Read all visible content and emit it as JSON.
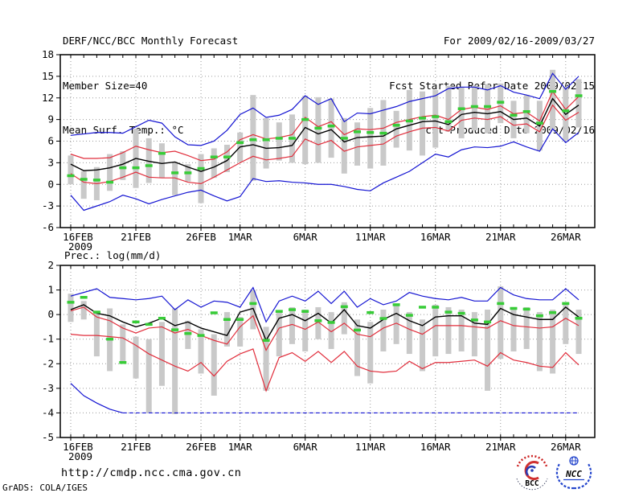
{
  "header": {
    "title": "DERF/NCC/BCC Monthly Forecast",
    "member_size": "Member Size=40",
    "for_range": "For 2009/02/16-2009/03/27",
    "fcst_started": "Fcst Started Refer Date 2009/02/15",
    "fcst_produced": "Fcst Produced Date 2009/02/16"
  },
  "footer": {
    "url": "http://cmdp.ncc.cma.gov.cn",
    "credit": "GrADS: COLA/IGES",
    "logo_bcc_label": "BCC",
    "logo_ncc_label": "NCC"
  },
  "colors": {
    "blue_line": "#1414d2",
    "red_line": "#e12e3c",
    "black_line": "#000000",
    "green_marker": "#37cc37",
    "bar_fill": "#c9c9c9",
    "grid": "#9a9a9a"
  },
  "chart_data": [
    {
      "type": "line",
      "title": "Mean Surf. Temp.: °C",
      "x_start_label": "16FEB2009",
      "x_end_label": "27MAR2009",
      "days_count": 40,
      "ylim": [
        -6,
        18
      ],
      "yticks": [
        18,
        15,
        12,
        9,
        6,
        3,
        0,
        -3,
        -6
      ],
      "grid_color": "#9a9a9a",
      "xticks": [
        {
          "day": 0,
          "label": "16FEB",
          "year": "2009"
        },
        {
          "day": 5,
          "label": "21FEB"
        },
        {
          "day": 10,
          "label": "26FEB"
        },
        {
          "day": 13,
          "label": "1MAR"
        },
        {
          "day": 18,
          "label": "6MAR"
        },
        {
          "day": 23,
          "label": "11MAR"
        },
        {
          "day": 28,
          "label": "16MAR"
        },
        {
          "day": 33,
          "label": "21MAR"
        },
        {
          "day": 38,
          "label": "26MAR"
        }
      ],
      "bars": {
        "name": "ensemble-spread-bars",
        "color": "#c9c9c9",
        "hi": [
          4.0,
          1.8,
          2.4,
          4.2,
          4.6,
          7.7,
          6.4,
          5.7,
          3.1,
          2.8,
          4.2,
          5.0,
          5.5,
          7.2,
          12.4,
          9.2,
          8.6,
          9.7,
          12.3,
          12.1,
          11.9,
          9.2,
          8.6,
          10.6,
          11.7,
          10.2,
          13.1,
          12.9,
          13.1,
          13.7,
          13.5,
          13.7,
          13.9,
          14.0,
          11.6,
          12.4,
          11.6,
          15.9,
          13.5,
          14.6
        ],
        "lo": [
          0.0,
          -2.0,
          -2.2,
          -0.9,
          0.6,
          -0.5,
          0.2,
          0.9,
          -1.5,
          0.4,
          -2.6,
          0.9,
          1.7,
          3.1,
          0.5,
          2.2,
          3.3,
          3.0,
          2.8,
          3.0,
          3.7,
          1.5,
          2.6,
          2.2,
          2.6,
          5.1,
          4.7,
          4.0,
          5.1,
          7.3,
          6.4,
          7.5,
          7.1,
          8.5,
          6.4,
          7.1,
          4.7,
          7.5,
          6.1,
          7.9
        ]
      },
      "series": [
        {
          "name": "blue-upper-line",
          "color": "#1414d2",
          "width": 1.2,
          "values": [
            6.8,
            7.0,
            7.2,
            7.2,
            7.1,
            8.0,
            8.9,
            8.5,
            6.6,
            5.5,
            5.4,
            6.0,
            7.5,
            9.7,
            10.6,
            9.3,
            9.6,
            10.4,
            12.3,
            11.1,
            11.9,
            8.7,
            9.9,
            9.8,
            10.3,
            10.8,
            11.5,
            11.9,
            12.3,
            13.3,
            13.5,
            13.5,
            13.1,
            13.7,
            12.8,
            12.4,
            11.9,
            15.4,
            13.2,
            15.0
          ]
        },
        {
          "name": "red-upper-line",
          "color": "#e12e3c",
          "width": 1.2,
          "values": [
            4.2,
            3.6,
            3.6,
            3.7,
            4.4,
            5.3,
            4.8,
            4.4,
            4.6,
            4.0,
            3.3,
            3.5,
            4.5,
            6.2,
            6.9,
            6.3,
            6.5,
            6.9,
            9.3,
            8.0,
            8.7,
            6.9,
            7.7,
            7.6,
            7.8,
            8.6,
            9.0,
            9.4,
            9.6,
            9.0,
            10.4,
            10.7,
            10.4,
            10.9,
            9.8,
            10.0,
            8.8,
            12.9,
            10.4,
            12.2
          ]
        },
        {
          "name": "black-mean-line",
          "color": "#000000",
          "width": 1.4,
          "values": [
            2.8,
            1.9,
            2.0,
            2.3,
            2.8,
            3.6,
            3.2,
            2.9,
            3.1,
            2.4,
            1.8,
            2.4,
            3.3,
            5.2,
            5.5,
            5.0,
            5.1,
            5.4,
            7.9,
            7.0,
            7.6,
            5.9,
            6.5,
            6.6,
            6.7,
            7.7,
            8.2,
            8.7,
            8.8,
            8.3,
            9.7,
            10.0,
            9.8,
            10.1,
            9.0,
            9.2,
            8.1,
            11.9,
            9.7,
            11.0
          ]
        },
        {
          "name": "red-lower-line",
          "color": "#e12e3c",
          "width": 1.2,
          "values": [
            1.5,
            0.3,
            0.1,
            0.4,
            1.0,
            1.7,
            1.0,
            0.9,
            0.9,
            0.3,
            0.1,
            1.0,
            2.0,
            3.0,
            3.9,
            3.4,
            3.6,
            3.9,
            6.3,
            5.5,
            6.1,
            4.6,
            5.2,
            5.4,
            5.6,
            6.7,
            7.3,
            7.8,
            7.9,
            7.4,
            8.9,
            9.2,
            9.0,
            9.4,
            8.2,
            8.4,
            7.3,
            11.0,
            8.9,
            10.0
          ]
        },
        {
          "name": "blue-lower-line",
          "color": "#1414d2",
          "width": 1.2,
          "values": [
            -1.5,
            -3.6,
            -3.0,
            -2.4,
            -1.5,
            -2.0,
            -2.7,
            -2.1,
            -1.6,
            -1.1,
            -0.8,
            -1.6,
            -2.3,
            -1.7,
            0.8,
            0.4,
            0.5,
            0.3,
            0.2,
            0.0,
            0.0,
            -0.3,
            -0.7,
            -0.9,
            0.2,
            1.0,
            1.8,
            3.0,
            4.2,
            3.8,
            4.8,
            5.2,
            5.1,
            5.3,
            5.9,
            5.2,
            4.6,
            7.7,
            5.8,
            7.2
          ]
        }
      ],
      "markers": {
        "name": "green-dash-markers",
        "color": "#37cc37",
        "values": [
          1.2,
          0.7,
          0.6,
          0.3,
          2.3,
          2.3,
          2.6,
          4.3,
          1.6,
          1.6,
          2.2,
          3.8,
          3.8,
          5.8,
          6.2,
          6.2,
          6.4,
          6.4,
          9.0,
          7.8,
          8.1,
          6.4,
          7.3,
          7.2,
          7.1,
          8.2,
          8.8,
          9.2,
          9.4,
          8.7,
          10.5,
          10.8,
          10.8,
          11.4,
          9.6,
          10.1,
          8.5,
          12.9,
          10.2,
          12.3
        ]
      }
    },
    {
      "type": "line",
      "title": "Prec.: log(mm/d)",
      "x_start_label": "16FEB2009",
      "x_end_label": "27MAR2009",
      "days_count": 40,
      "ylim": [
        -5,
        2
      ],
      "yticks": [
        2,
        1,
        0,
        -1,
        -2,
        -3,
        -4,
        -5
      ],
      "grid_color": "#9a9a9a",
      "xticks": [
        {
          "day": 0,
          "label": "16FEB",
          "year": "2009"
        },
        {
          "day": 5,
          "label": "21FEB"
        },
        {
          "day": 10,
          "label": "26FEB"
        },
        {
          "day": 13,
          "label": "1MAR"
        },
        {
          "day": 18,
          "label": "6MAR"
        },
        {
          "day": 23,
          "label": "11MAR"
        },
        {
          "day": 28,
          "label": "16MAR"
        },
        {
          "day": 33,
          "label": "21MAR"
        },
        {
          "day": 38,
          "label": "26MAR"
        }
      ],
      "bars": {
        "name": "ensemble-spread-bars",
        "color": "#c9c9c9",
        "hi": [
          0.85,
          0.55,
          0.15,
          0.25,
          -0.4,
          -0.9,
          -1.0,
          -0.3,
          0.25,
          -0.25,
          -0.6,
          -0.8,
          0.1,
          -0.1,
          1.0,
          -0.5,
          0.1,
          0.3,
          0.2,
          0.3,
          0.1,
          0.5,
          -0.2,
          -0.3,
          0.2,
          0.4,
          0.1,
          -0.2,
          0.4,
          0.3,
          0.2,
          0.1,
          0.2,
          1.15,
          0.3,
          0.3,
          0.1,
          0.2,
          0.45,
          0.2
        ],
        "lo": [
          -0.3,
          -0.2,
          -1.7,
          -2.3,
          -1.9,
          -2.6,
          -4.0,
          -2.9,
          -4.05,
          -1.4,
          -2.4,
          -3.3,
          -1.3,
          -1.3,
          -0.6,
          -3.1,
          -1.7,
          -1.2,
          -1.5,
          -1.0,
          -1.4,
          -0.8,
          -2.5,
          -2.8,
          -1.5,
          -1.2,
          -1.6,
          -2.3,
          -1.7,
          -1.6,
          -1.5,
          -1.7,
          -3.1,
          -1.8,
          -1.5,
          -1.4,
          -2.3,
          -2.4,
          -1.2,
          -1.6
        ]
      },
      "series": [
        {
          "name": "blue-upper-line",
          "color": "#1414d2",
          "width": 1.2,
          "values": [
            0.75,
            0.9,
            1.05,
            0.7,
            0.65,
            0.6,
            0.65,
            0.75,
            0.2,
            0.6,
            0.3,
            0.55,
            0.5,
            0.3,
            1.1,
            -0.3,
            0.55,
            0.75,
            0.55,
            0.95,
            0.45,
            0.95,
            0.3,
            0.65,
            0.4,
            0.55,
            0.9,
            0.75,
            0.65,
            0.6,
            0.7,
            0.55,
            0.55,
            1.1,
            0.8,
            0.65,
            0.6,
            0.6,
            1.05,
            0.6
          ]
        },
        {
          "name": "red-upper-line",
          "color": "#e12e3c",
          "width": 1.2,
          "values": [
            0.15,
            0.3,
            -0.1,
            -0.25,
            -0.55,
            -0.75,
            -0.55,
            -0.5,
            -0.75,
            -0.6,
            -0.85,
            -1.05,
            -1.2,
            -0.5,
            -0.05,
            -1.45,
            -0.55,
            -0.4,
            -0.6,
            -0.3,
            -0.7,
            -0.35,
            -0.8,
            -0.9,
            -0.55,
            -0.35,
            -0.6,
            -0.8,
            -0.45,
            -0.45,
            -0.45,
            -0.5,
            -0.55,
            -0.25,
            -0.45,
            -0.5,
            -0.55,
            -0.5,
            -0.15,
            -0.45
          ]
        },
        {
          "name": "black-mean-line",
          "color": "#000000",
          "width": 1.4,
          "values": [
            0.2,
            0.4,
            0.05,
            -0.05,
            -0.3,
            -0.5,
            -0.35,
            -0.15,
            -0.45,
            -0.3,
            -0.55,
            -0.7,
            -0.85,
            0.1,
            0.25,
            -1.05,
            -0.15,
            0.0,
            -0.25,
            0.05,
            -0.35,
            0.2,
            -0.45,
            -0.55,
            -0.2,
            0.05,
            -0.25,
            -0.45,
            -0.1,
            -0.05,
            -0.05,
            -0.35,
            -0.4,
            0.25,
            0.0,
            -0.1,
            -0.2,
            -0.2,
            0.3,
            -0.1
          ]
        },
        {
          "name": "red-lower-line",
          "color": "#e12e3c",
          "width": 1.2,
          "values": [
            -0.8,
            -0.85,
            -0.85,
            -0.9,
            -0.95,
            -1.25,
            -1.6,
            -1.85,
            -2.1,
            -2.3,
            -1.95,
            -2.5,
            -1.9,
            -1.6,
            -1.4,
            -3.1,
            -1.75,
            -1.55,
            -1.9,
            -1.5,
            -1.95,
            -1.5,
            -2.1,
            -2.3,
            -2.35,
            -2.3,
            -1.9,
            -2.2,
            -1.95,
            -1.95,
            -1.9,
            -1.85,
            -2.1,
            -1.55,
            -1.85,
            -1.95,
            -2.1,
            -2.15,
            -1.55,
            -2.05
          ]
        },
        {
          "name": "blue-lower-line",
          "color": "#1414d2",
          "width": 1.2,
          "dash_from": 4,
          "dasharray": "5,3",
          "values": [
            -2.8,
            -3.3,
            -3.6,
            -3.85,
            -4.0,
            -4.0,
            -4.0,
            -4.0,
            -4.0,
            -4.0,
            -4.0,
            -4.0,
            -4.0,
            -4.0,
            -4.0,
            -4.0,
            -4.0,
            -4.0,
            -4.0,
            -4.0,
            -4.0,
            -4.0,
            -4.0,
            -4.0,
            -4.0,
            -4.0,
            -4.0,
            -4.0,
            -4.0,
            -4.0,
            -4.0,
            -4.0,
            -4.0,
            -4.0,
            -4.0,
            -4.0,
            -4.0,
            -4.0,
            -4.0,
            -4.0
          ]
        }
      ],
      "markers": {
        "name": "green-dash-markers",
        "color": "#37cc37",
        "values": [
          0.5,
          0.7,
          0.1,
          -1.0,
          -1.95,
          -0.3,
          -0.4,
          -0.15,
          -0.62,
          -0.77,
          -0.85,
          0.07,
          -0.2,
          -0.2,
          0.45,
          -1.05,
          0.13,
          0.2,
          0.13,
          -0.25,
          -0.32,
          0.32,
          -0.63,
          0.08,
          -0.16,
          0.4,
          -0.03,
          0.3,
          0.3,
          0.1,
          0.05,
          -0.22,
          -0.3,
          0.45,
          0.25,
          0.22,
          -0.05,
          0.08,
          0.45,
          -0.15
        ]
      }
    }
  ]
}
